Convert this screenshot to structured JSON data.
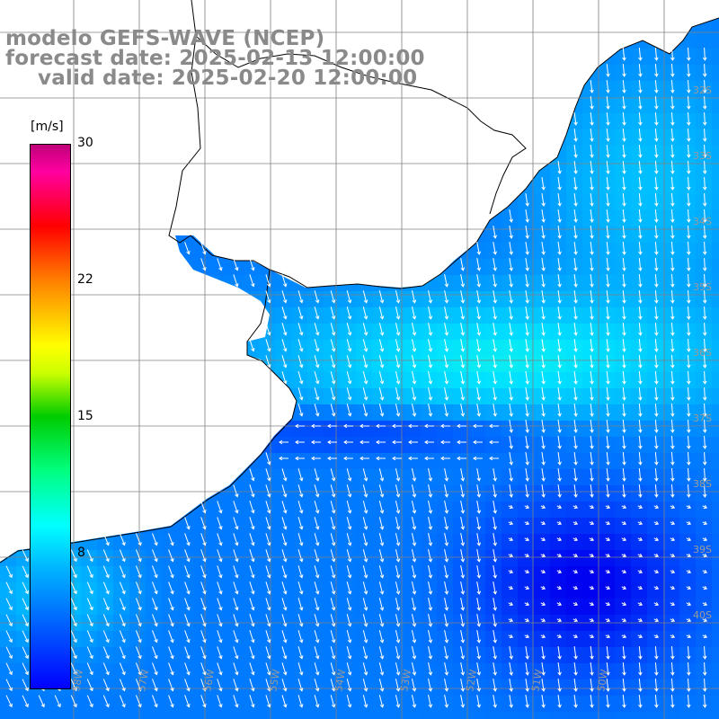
{
  "titles": {
    "model": "modelo GEFS-WAVE (NCEP)",
    "forecast": "forecast date: 2025-02-13 12:00:00",
    "valid": "valid date: 2025-02-20 12:00:00"
  },
  "colorbar": {
    "unit": "[m/s]",
    "ticks": [
      "30",
      "22",
      "15",
      "8"
    ],
    "tick_values": [
      30,
      22,
      15,
      8
    ],
    "min": 0,
    "max": 30,
    "colors": [
      "#0000ff",
      "#00b4ff",
      "#00ffff",
      "#00ff80",
      "#00cc00",
      "#ccff00",
      "#ffff00",
      "#ff8000",
      "#ff0000",
      "#ff00a0",
      "#c0007a"
    ]
  },
  "map": {
    "lat_labels": [
      "32S",
      "33S",
      "34S",
      "35S",
      "36S",
      "37S",
      "38S",
      "39S",
      "40S"
    ],
    "lon_labels": [
      "58W",
      "57W",
      "56W",
      "55W",
      "54W",
      "53W",
      "52W",
      "51W",
      "50W"
    ],
    "land_color": "#ffffff",
    "grid_color": "#808080"
  }
}
